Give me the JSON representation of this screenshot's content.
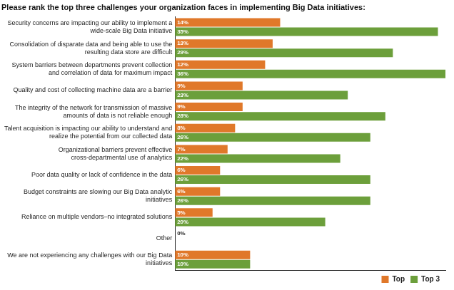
{
  "chart_data": {
    "type": "bar",
    "orientation": "horizontal",
    "title": "Please rank the top three challenges your organization faces in implementing Big Data initiatives:",
    "categories": [
      "Security concerns are impacting our ability to implement a wide-scale Big Data initiative",
      "Consolidation of disparate data and being able to use the resulting data store are difficult",
      "System barriers between departments prevent collection and correlation of data for maximum impact",
      "Quality and cost of collecting machine data are a barrier",
      "The integrity of the network for transmission of massive amounts of data is not reliable enough",
      "Talent acquisition is impacting our ability to understand and realize the potential from our collected data",
      "Organizational barriers prevent effective cross-departmental use of analytics",
      "Poor data quality or lack of confidence in the data",
      "Budget constraints are slowing our Big Data analytic initiatives",
      "Reliance on multiple vendors–no integrated solutions",
      "Other",
      "We are not experiencing any challenges with our Big Data initiatives"
    ],
    "series": [
      {
        "name": "Top",
        "color": "#e0782a",
        "values": [
          14,
          13,
          12,
          9,
          9,
          8,
          7,
          6,
          6,
          5,
          0,
          10
        ],
        "value_labels": [
          "14%",
          "13%",
          "12%",
          "9%",
          "9%",
          "8%",
          "7%",
          "6%",
          "6%",
          "5%",
          "0%",
          "10%"
        ]
      },
      {
        "name": "Top 3",
        "color": "#6c9f3b",
        "values": [
          35,
          29,
          36,
          23,
          28,
          26,
          22,
          26,
          26,
          20,
          0,
          10
        ],
        "value_labels": [
          "35%",
          "29%",
          "36%",
          "23%",
          "28%",
          "26%",
          "22%",
          "26%",
          "26%",
          "20%",
          null,
          "10%"
        ]
      }
    ],
    "xlim": [
      0,
      36
    ],
    "xticks": [],
    "grid": false,
    "legend": "lower right",
    "data_labels": true,
    "tick_labels": "y"
  }
}
